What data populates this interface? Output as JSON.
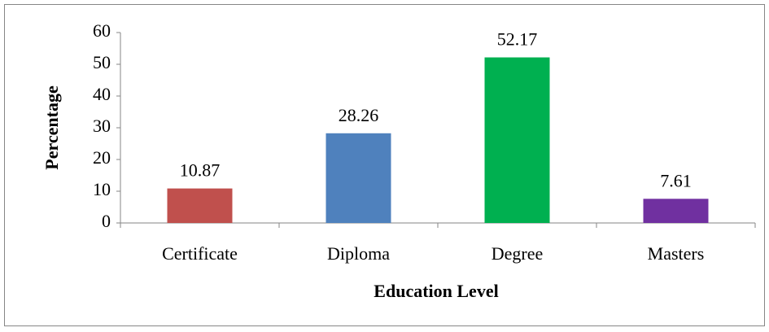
{
  "chart_data": {
    "type": "bar",
    "categories": [
      "Certificate",
      "Diploma",
      "Degree",
      "Masters"
    ],
    "values": [
      10.87,
      28.26,
      52.17,
      7.61
    ],
    "colors": [
      "#c0504d",
      "#4f81bd",
      "#00b050",
      "#7030a0"
    ],
    "x_label": "Education Level",
    "y_label": "Percentage",
    "ylim": [
      0,
      60
    ],
    "yticks": [
      0,
      10,
      20,
      30,
      40,
      50,
      60
    ],
    "grid": false
  }
}
